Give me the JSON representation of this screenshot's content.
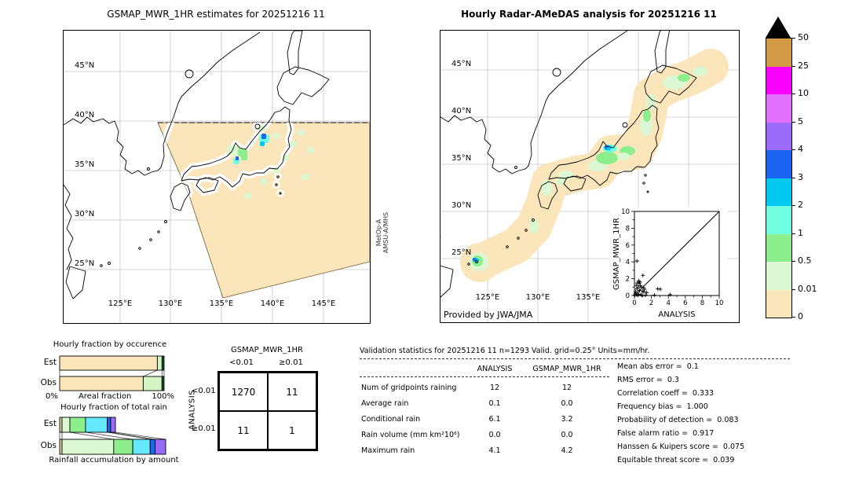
{
  "chart_data": [
    {
      "id": "gsmap_map",
      "type": "map",
      "title": "GSMAP_MWR_1HR estimates for 20251216 11",
      "lat_ticks": [
        "45°N",
        "40°N",
        "35°N",
        "30°N",
        "25°N"
      ],
      "lon_ticks": [
        "125°E",
        "130°E",
        "135°E",
        "140°E",
        "145°E"
      ],
      "satellite": [
        "MetOp-A",
        "AMSU-A/MHS"
      ],
      "swath_color": "#fbe6bb"
    },
    {
      "id": "radar_map",
      "type": "map",
      "title": "Hourly Radar-AMeDAS analysis for 20251216 11",
      "lat_ticks": [
        "45°N",
        "40°N",
        "35°N",
        "30°N",
        "25°N"
      ],
      "lon_ticks": [
        "125°E",
        "130°E",
        "135°E"
      ],
      "credit": "Provided by JWA/JMA",
      "coverage_color": "#fbe6bb"
    },
    {
      "id": "colorbar",
      "type": "colorbar",
      "units": "mm/hr",
      "tick_labels": [
        "0",
        "0.01",
        "0.5",
        "1",
        "2",
        "3",
        "4",
        "5",
        "10",
        "25",
        "50"
      ],
      "colors_bottom_to_top": [
        "#fbe6bb",
        "#dcf8d2",
        "#8dee8d",
        "#70ffe0",
        "#00c8f0",
        "#1c64f2",
        "#9b6bf9",
        "#e16ffc",
        "#fa00fe",
        "#d29a45"
      ],
      "overflow_color": "#000000"
    },
    {
      "id": "occurrence",
      "type": "bar",
      "title": "Hourly fraction by occurence",
      "xlabel": "Areal fraction",
      "x_ticks": [
        "0%",
        "100%"
      ],
      "series": [
        {
          "name": "Est",
          "segments": [
            {
              "bin": "0-0.01",
              "color": "#fbe6bb",
              "frac": 0.935
            },
            {
              "bin": "0.01-0.5",
              "color": "#d6f5c4",
              "frac": 0.045
            },
            {
              "bin": ">0.5",
              "color": "#0b5c24",
              "frac": 0.02
            }
          ]
        },
        {
          "name": "Obs",
          "segments": [
            {
              "bin": "0-0.01",
              "color": "#fbe6bb",
              "frac": 0.8
            },
            {
              "bin": "0.01-0.5",
              "color": "#d6f5c4",
              "frac": 0.18
            },
            {
              "bin": ">0.5",
              "color": "#0b5c24",
              "frac": 0.02
            }
          ]
        }
      ]
    },
    {
      "id": "totalrain",
      "type": "bar",
      "title": "Hourly fraction of total rain",
      "xlabel": "Rainfall accumulation by amount",
      "series": [
        {
          "name": "Est",
          "segments": [
            {
              "color": "#e6d49c",
              "frac": 0.022
            },
            {
              "color": "#dcf8d2",
              "frac": 0.074
            },
            {
              "color": "#8dee8d",
              "frac": 0.148
            },
            {
              "color": "#64e8fd",
              "frac": 0.205
            },
            {
              "color": "#1c64f2",
              "frac": 0.032
            },
            {
              "color": "#9b6bf9",
              "frac": 0.045
            }
          ]
        },
        {
          "name": "Obs",
          "segments": [
            {
              "color": "#e6d49c",
              "frac": 0.022
            },
            {
              "color": "#dcf8d2",
              "frac": 0.488
            },
            {
              "color": "#8dee8d",
              "frac": 0.18
            },
            {
              "color": "#64e8fd",
              "frac": 0.164
            },
            {
              "color": "#1c64f2",
              "frac": 0.047
            },
            {
              "color": "#9b6bf9",
              "frac": 0.099
            }
          ]
        }
      ]
    },
    {
      "id": "scatter",
      "type": "scatter",
      "xlabel": "ANALYSIS",
      "ylabel": "GSMAP_MWR_1HR",
      "xlim": [
        0,
        10
      ],
      "ylim": [
        0,
        10
      ],
      "x_ticks": [
        0,
        2,
        4,
        6,
        8,
        10
      ],
      "y_ticks": [
        0,
        2,
        4,
        6,
        8,
        10
      ],
      "diagonal": true,
      "points": [
        [
          0.3,
          4.1
        ],
        [
          1.0,
          2.4
        ],
        [
          0.5,
          1.75
        ],
        [
          0.65,
          1.6
        ],
        [
          0.35,
          1.5
        ],
        [
          0.55,
          1.45
        ],
        [
          0.2,
          1.2
        ],
        [
          0.7,
          1.15
        ],
        [
          0.45,
          1.0
        ],
        [
          0.85,
          1.0
        ],
        [
          1.05,
          0.95
        ],
        [
          1.2,
          0.75
        ],
        [
          0.3,
          0.8
        ],
        [
          0.6,
          0.6
        ],
        [
          0.95,
          0.5
        ],
        [
          1.1,
          0.45
        ],
        [
          1.45,
          0.35
        ],
        [
          0.15,
          0.45
        ],
        [
          0.1,
          0.2
        ],
        [
          0.25,
          0.1
        ],
        [
          0.5,
          0.15
        ],
        [
          0.75,
          0.1
        ],
        [
          0.4,
          0.05
        ],
        [
          0.05,
          0.05
        ],
        [
          0.9,
          0.05
        ],
        [
          1.3,
          0.05
        ],
        [
          2.75,
          0.8
        ],
        [
          3.05,
          0.75
        ],
        [
          4.2,
          0.1
        ],
        [
          2.35,
          0.05
        ]
      ]
    },
    {
      "id": "contingency",
      "type": "table",
      "col_axis": "GSMAP_MWR_1HR",
      "row_axis": "ANALYSIS",
      "col_labels": [
        "<0.01",
        "≥0.01"
      ],
      "row_labels": [
        "<0.01",
        "≥0.01"
      ],
      "values": [
        [
          1270,
          11
        ],
        [
          11,
          1
        ]
      ]
    },
    {
      "id": "validation",
      "type": "table",
      "title": "Validation statistics for 20251216 11  n=1293 Valid. grid=0.25° Units=mm/hr.",
      "columns": [
        "ANALYSIS",
        "GSMAP_MWR_1HR"
      ],
      "rows": [
        [
          "Num of gridpoints raining",
          "12",
          "12"
        ],
        [
          "Average rain",
          "0.1",
          "0.0"
        ],
        [
          "Conditional rain",
          "6.1",
          "3.2"
        ],
        [
          "Rain volume (mm km²10⁶)",
          "0.0",
          "0.0"
        ],
        [
          "Maximum rain",
          "4.1",
          "4.2"
        ]
      ],
      "metrics": [
        [
          "Mean abs error",
          "0.1"
        ],
        [
          "RMS error",
          "0.3"
        ],
        [
          "Correlation coeff",
          "0.333"
        ],
        [
          "Frequency bias",
          "1.000"
        ],
        [
          "Probability of detection",
          "0.083"
        ],
        [
          "False alarm ratio",
          "0.917"
        ],
        [
          "Hanssen & Kuipers score",
          "0.075"
        ],
        [
          "Equitable threat score",
          "0.039"
        ]
      ]
    }
  ]
}
